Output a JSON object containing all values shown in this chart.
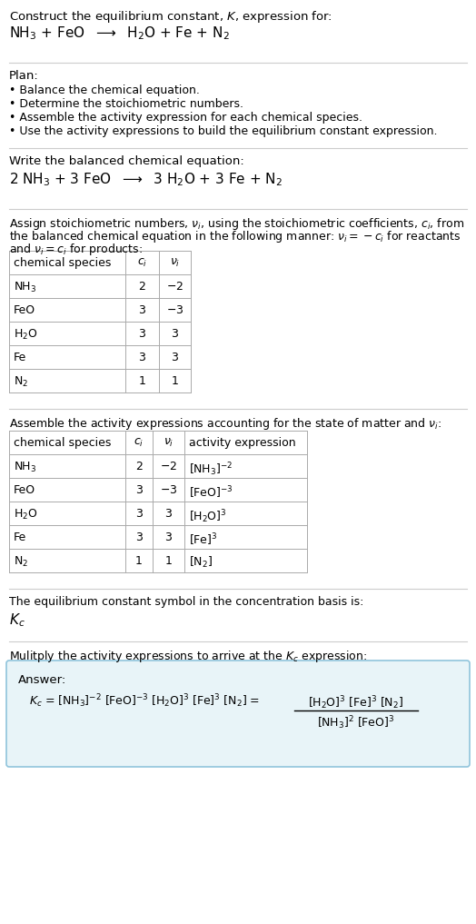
{
  "title_line1": "Construct the equilibrium constant, $K$, expression for:",
  "reaction_unbalanced": "NH$_3$ + FeO  $\\longrightarrow$  H$_2$O + Fe + N$_2$",
  "plan_header": "Plan:",
  "plan_items": [
    "• Balance the chemical equation.",
    "• Determine the stoichiometric numbers.",
    "• Assemble the activity expression for each chemical species.",
    "• Use the activity expressions to build the equilibrium constant expression."
  ],
  "balanced_header": "Write the balanced chemical equation:",
  "reaction_balanced": "2 NH$_3$ + 3 FeO  $\\longrightarrow$  3 H$_2$O + 3 Fe + N$_2$",
  "stoich_intro": "Assign stoichiometric numbers, $\\nu_i$, using the stoichiometric coefficients, $c_i$, from",
  "stoich_intro2": "the balanced chemical equation in the following manner: $\\nu_i = -c_i$ for reactants",
  "stoich_intro3": "and $\\nu_i = c_i$ for products:",
  "table1_headers": [
    "chemical species",
    "$c_i$",
    "$\\nu_i$"
  ],
  "table1_rows": [
    [
      "NH$_3$",
      "2",
      "$-2$"
    ],
    [
      "FeO",
      "3",
      "$-3$"
    ],
    [
      "H$_2$O",
      "3",
      "3"
    ],
    [
      "Fe",
      "3",
      "3"
    ],
    [
      "N$_2$",
      "1",
      "1"
    ]
  ],
  "activity_header": "Assemble the activity expressions accounting for the state of matter and $\\nu_i$:",
  "table2_headers": [
    "chemical species",
    "$c_i$",
    "$\\nu_i$",
    "activity expression"
  ],
  "table2_rows": [
    [
      "NH$_3$",
      "2",
      "$-2$",
      "[NH$_3$]$^{-2}$"
    ],
    [
      "FeO",
      "3",
      "$-3$",
      "[FeO]$^{-3}$"
    ],
    [
      "H$_2$O",
      "3",
      "3",
      "[H$_2$O]$^3$"
    ],
    [
      "Fe",
      "3",
      "3",
      "[Fe]$^3$"
    ],
    [
      "N$_2$",
      "1",
      "1",
      "[N$_2$]"
    ]
  ],
  "kc_header": "The equilibrium constant symbol in the concentration basis is:",
  "kc_symbol": "$K_c$",
  "multiply_header": "Mulitply the activity expressions to arrive at the $K_c$ expression:",
  "answer_label": "Answer:",
  "answer_line1": "$K_c$ = [NH$_3$]$^{-2}$ [FeO]$^{-3}$ [H$_2$O]$^3$ [Fe]$^3$ [N$_2$] =",
  "answer_num": "[H$_2$O]$^3$ [Fe]$^3$ [N$_2$]",
  "answer_den": "[NH$_3$]$^2$ [FeO]$^3$",
  "bg_color": "#ffffff",
  "answer_box_bg": "#e8f4f8",
  "answer_box_border": "#90c4dc",
  "text_color": "#000000",
  "divider_color": "#cccccc",
  "table_line_color": "#aaaaaa",
  "font_size": 9.5,
  "small_font_size": 9.0,
  "reaction_font_size": 11.0,
  "table_font_size": 9.5
}
